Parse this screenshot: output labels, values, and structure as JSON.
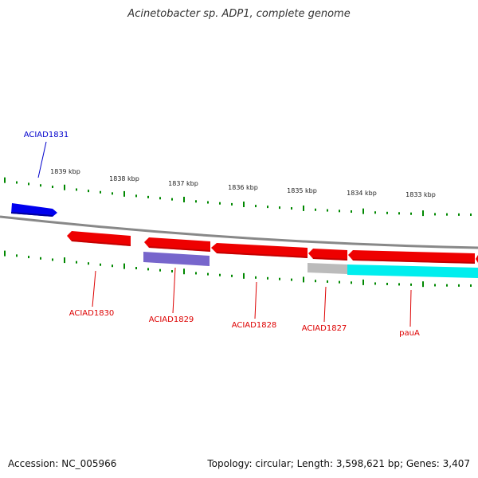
{
  "title": "Acinetobacter sp. ADP1, complete genome",
  "footer": {
    "accession": "Accession: NC_005966",
    "summary": "Topology: circular; Length: 3,598,621 bp; Genes: 3,407"
  },
  "ticks": [
    "1839 kbp",
    "1838 kbp",
    "1837 kbp",
    "1836 kbp",
    "1835 kbp",
    "1834 kbp",
    "1833 kbp"
  ],
  "genes": [
    {
      "label": "ACIAD1831",
      "color": "#0000cc",
      "track": "forward"
    },
    {
      "label": "ACIAD1830",
      "color": "#dd0000",
      "track": "reverse"
    },
    {
      "label": "ACIAD1829",
      "color": "#dd0000",
      "track": "reverse"
    },
    {
      "label": "ACIAD1828",
      "color": "#dd0000",
      "track": "reverse"
    },
    {
      "label": "ACIAD1827",
      "color": "#dd0000",
      "track": "reverse"
    },
    {
      "label": "pauA",
      "color": "#dd0000",
      "track": "reverse"
    }
  ],
  "colors": {
    "forward_cds": "#0000ee",
    "reverse_cds": "#ee0000",
    "cog_purple": "#7766cc",
    "cog_cyan": "#00eeee",
    "cog_gray": "#bbbbbb",
    "backbone": "#888888",
    "gc_ticks": "#008800",
    "ruler_text": "#222222"
  }
}
